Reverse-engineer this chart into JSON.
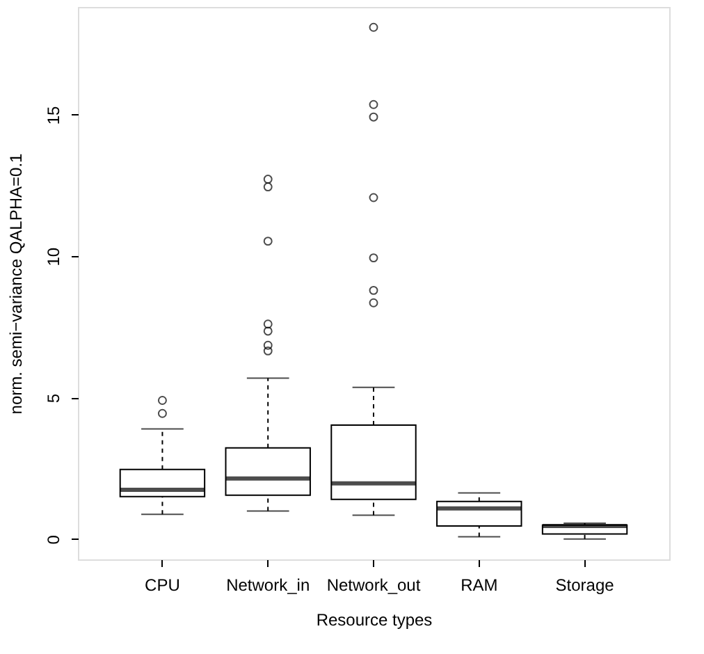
{
  "chart_data": {
    "type": "box",
    "xlabel": "Resource types",
    "ylabel": "norm. semi−variance QALPHA=0.1",
    "categories": [
      "CPU",
      "Network_in",
      "Network_out",
      "RAM",
      "Storage"
    ],
    "boxes": [
      {
        "low": 0.87,
        "q1": 1.5,
        "median": 1.74,
        "q3": 2.46,
        "high": 3.89,
        "outliers": [
          4.44,
          4.9
        ]
      },
      {
        "low": 0.99,
        "q1": 1.55,
        "median": 2.14,
        "q3": 3.22,
        "high": 5.69,
        "outliers": [
          6.65,
          6.85,
          7.35,
          7.6,
          10.53,
          12.45,
          12.72
        ]
      },
      {
        "low": 0.84,
        "q1": 1.4,
        "median": 1.97,
        "q3": 4.03,
        "high": 5.36,
        "outliers": [
          8.35,
          8.79,
          9.94,
          12.07,
          14.92,
          15.36,
          18.09
        ]
      },
      {
        "low": 0.08,
        "q1": 0.46,
        "median": 1.08,
        "q3": 1.33,
        "high": 1.63
      },
      {
        "low": 0.0,
        "q1": 0.18,
        "median": 0.46,
        "q3": 0.49,
        "high": 0.56
      }
    ],
    "ylim": [
      -0.72,
      18.81
    ],
    "yticks": [
      0,
      5,
      10,
      15
    ],
    "grid": false
  }
}
